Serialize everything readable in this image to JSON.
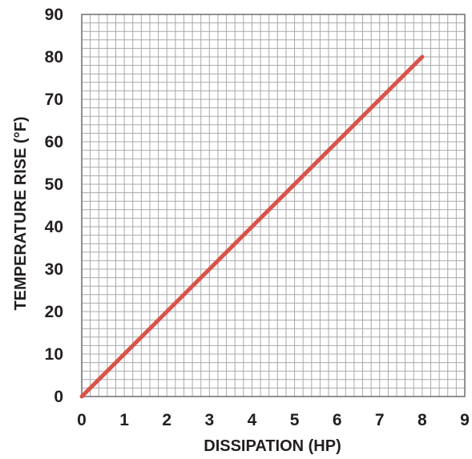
{
  "chart_data": {
    "type": "line",
    "xlabel": "DISSIPATION (HP)",
    "ylabel": "TEMPERATURE RISE (°F)",
    "xlim": [
      0,
      9
    ],
    "ylim": [
      0,
      90
    ],
    "x_ticks": [
      "0",
      "1",
      "2",
      "3",
      "4",
      "5",
      "6",
      "7",
      "8",
      "9"
    ],
    "y_ticks": [
      "0",
      "10",
      "20",
      "30",
      "40",
      "50",
      "60",
      "70",
      "80",
      "90"
    ],
    "grid": true,
    "grid_minor_per_major": 5,
    "series": [
      {
        "x": [
          0,
          8
        ],
        "y": [
          0,
          80
        ],
        "color": "#d9534a"
      }
    ],
    "colors": {
      "line": "#d9534a",
      "grid": "#a9a9a9",
      "frame": "#6d6d6d",
      "text": "#231f20"
    }
  }
}
